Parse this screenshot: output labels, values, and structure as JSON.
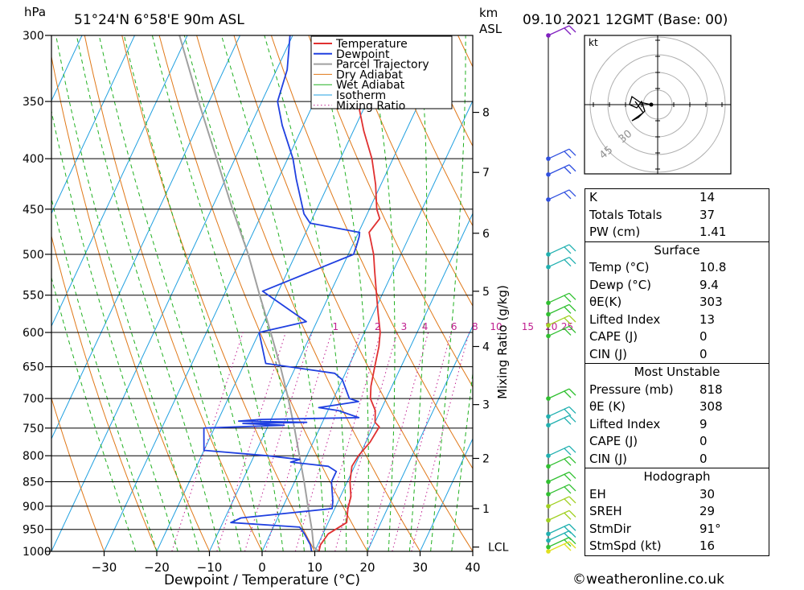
{
  "header": {
    "location": "51°24'N  6°58'E  90m  ASL",
    "date": "09.10.2021  12GMT  (Base: 00)",
    "hpa_unit": "hPa",
    "km_unit": "km",
    "asl_unit": "ASL"
  },
  "chart_data": {
    "type": "line",
    "chart_kind": "skew-T log-P",
    "xlabel": "Dewpoint / Temperature (°C)",
    "y2label": "Mixing Ratio (g/kg)",
    "xlim": [
      -40,
      40
    ],
    "ylim": [
      1000,
      300
    ],
    "y_scale": "log",
    "pressure_ticks": [
      300,
      350,
      400,
      450,
      500,
      550,
      600,
      650,
      700,
      750,
      800,
      850,
      900,
      950,
      1000
    ],
    "temp_ticks": [
      -30,
      -20,
      -10,
      0,
      10,
      20,
      30,
      40
    ],
    "km_ticks": [
      {
        "label": "8",
        "p": 359
      },
      {
        "label": "7",
        "p": 413
      },
      {
        "label": "6",
        "p": 476
      },
      {
        "label": "5",
        "p": 545
      },
      {
        "label": "4",
        "p": 620
      },
      {
        "label": "3",
        "p": 710
      },
      {
        "label": "2",
        "p": 805
      },
      {
        "label": "1",
        "p": 905
      },
      {
        "label": "LCL",
        "p": 990
      }
    ],
    "mixing_ratio_labels": [
      "1",
      "2",
      "3",
      "4",
      "6",
      "8",
      "10",
      "15",
      "20",
      "25"
    ],
    "mixing_ratio_label_x": [
      -5.5,
      2.5,
      7.5,
      11.5,
      17,
      21,
      25,
      31,
      35.5,
      38.5
    ],
    "legend": [
      "Temperature",
      "Dewpoint",
      "Parcel Trajectory",
      "Dry Adiabat",
      "Wet Adiabat",
      "Isotherm",
      "Mixing Ratio"
    ],
    "legend_position": "top-center",
    "colors": {
      "temperature": "#e03030",
      "dewpoint": "#2040e0",
      "parcel": "#a0a0a0",
      "dry_adiabat": "#e07818",
      "wet_adiabat": "#20b020",
      "isotherm": "#20a0e0",
      "mixing_ratio": "#c02090"
    },
    "series": [
      {
        "name": "Temperature",
        "points": [
          [
            1000,
            10.8
          ],
          [
            985,
            10.5
          ],
          [
            960,
            11.0
          ],
          [
            935,
            13.5
          ],
          [
            905,
            12.5
          ],
          [
            880,
            12.0
          ],
          [
            850,
            10.5
          ],
          [
            820,
            9.5
          ],
          [
            800,
            9.8
          ],
          [
            775,
            10.8
          ],
          [
            748,
            11.2
          ],
          [
            740,
            10.0
          ],
          [
            720,
            9.0
          ],
          [
            700,
            7.0
          ],
          [
            680,
            6.0
          ],
          [
            650,
            5.0
          ],
          [
            620,
            4.0
          ],
          [
            600,
            3.0
          ],
          [
            575,
            1.0
          ],
          [
            550,
            -1.0
          ],
          [
            520,
            -3.5
          ],
          [
            500,
            -5.2
          ],
          [
            475,
            -8.0
          ],
          [
            460,
            -7.2
          ],
          [
            450,
            -8.6
          ],
          [
            425,
            -11.0
          ],
          [
            400,
            -14.0
          ],
          [
            375,
            -18.0
          ],
          [
            355,
            -21.0
          ],
          [
            335,
            -24.5
          ],
          [
            300,
            -29.5
          ]
        ]
      },
      {
        "name": "Dewpoint",
        "points": [
          [
            1000,
            9.4
          ],
          [
            985,
            8.6
          ],
          [
            960,
            6.5
          ],
          [
            945,
            5.0
          ],
          [
            935,
            -8.5
          ],
          [
            925,
            -7.0
          ],
          [
            905,
            9.5
          ],
          [
            890,
            9.0
          ],
          [
            850,
            7.0
          ],
          [
            830,
            7.0
          ],
          [
            820,
            5.0
          ],
          [
            812,
            -2.5
          ],
          [
            807,
            -1.0
          ],
          [
            800,
            -7.5
          ],
          [
            790,
            -20.0
          ],
          [
            760,
            -21.5
          ],
          [
            750,
            -22.0
          ],
          [
            745,
            -7.0
          ],
          [
            742,
            -15.0
          ],
          [
            740,
            -3.0
          ],
          [
            738,
            -16.0
          ],
          [
            735,
            -12.0
          ],
          [
            732,
            6.5
          ],
          [
            720,
            2.0
          ],
          [
            715,
            -2.0
          ],
          [
            705,
            5.0
          ],
          [
            700,
            3.0
          ],
          [
            670,
            0.0
          ],
          [
            660,
            -2.0
          ],
          [
            645,
            -16.0
          ],
          [
            600,
            -20.0
          ],
          [
            585,
            -12.0
          ],
          [
            545,
            -23.0
          ],
          [
            500,
            -9.0
          ],
          [
            490,
            -9.2
          ],
          [
            480,
            -9.5
          ],
          [
            475,
            -9.8
          ],
          [
            465,
            -20.0
          ],
          [
            455,
            -22.0
          ],
          [
            420,
            -26.5
          ],
          [
            400,
            -29.0
          ],
          [
            370,
            -34.0
          ],
          [
            350,
            -37.0
          ],
          [
            325,
            -38.0
          ],
          [
            300,
            -40.5
          ]
        ]
      },
      {
        "name": "Parcel Trajectory",
        "points": [
          [
            1000,
            10.8
          ],
          [
            990,
            9.4
          ],
          [
            950,
            7.5
          ],
          [
            900,
            4.7
          ],
          [
            850,
            1.8
          ],
          [
            800,
            -1.4
          ],
          [
            750,
            -4.8
          ],
          [
            700,
            -8.6
          ],
          [
            650,
            -12.9
          ],
          [
            600,
            -17.8
          ],
          [
            550,
            -23.2
          ],
          [
            500,
            -29.0
          ],
          [
            450,
            -36.0
          ],
          [
            400,
            -43.5
          ],
          [
            350,
            -52.0
          ],
          [
            300,
            -61.5
          ]
        ]
      }
    ],
    "wind_barbs": [
      {
        "p": 300,
        "color": "#8020c0"
      },
      {
        "p": 400,
        "color": "#3050e0"
      },
      {
        "p": 415,
        "color": "#3050e0"
      },
      {
        "p": 440,
        "color": "#3050e0"
      },
      {
        "p": 500,
        "color": "#20b0b0"
      },
      {
        "p": 515,
        "color": "#20b0b0"
      },
      {
        "p": 560,
        "color": "#30c030"
      },
      {
        "p": 575,
        "color": "#30c030"
      },
      {
        "p": 590,
        "color": "#a0d020"
      },
      {
        "p": 605,
        "color": "#30c030"
      },
      {
        "p": 700,
        "color": "#30c030"
      },
      {
        "p": 730,
        "color": "#20b0b0"
      },
      {
        "p": 745,
        "color": "#20b0b0"
      },
      {
        "p": 800,
        "color": "#20b0b0"
      },
      {
        "p": 820,
        "color": "#30c030"
      },
      {
        "p": 850,
        "color": "#30c030"
      },
      {
        "p": 875,
        "color": "#30c030"
      },
      {
        "p": 900,
        "color": "#a0d020"
      },
      {
        "p": 930,
        "color": "#a0d020"
      },
      {
        "p": 960,
        "color": "#20b0b0"
      },
      {
        "p": 975,
        "color": "#20b0b0"
      },
      {
        "p": 990,
        "color": "#30c030"
      },
      {
        "p": 1000,
        "color": "#e0e020"
      }
    ],
    "hodograph": {
      "unit_label": "kt",
      "ring_labels": [
        "30",
        "45"
      ]
    }
  },
  "indices": {
    "top": [
      {
        "label": "K",
        "value": "14"
      },
      {
        "label": "Totals Totals",
        "value": "37"
      },
      {
        "label": "PW (cm)",
        "value": "1.41"
      }
    ],
    "surface": {
      "title": "Surface",
      "rows": [
        {
          "label": "Temp (°C)",
          "value": "10.8"
        },
        {
          "label": "Dewp (°C)",
          "value": "9.4"
        },
        {
          "label": "θE(K)",
          "value": "303"
        },
        {
          "label": "Lifted Index",
          "value": "13"
        },
        {
          "label": "CAPE (J)",
          "value": "0"
        },
        {
          "label": "CIN (J)",
          "value": "0"
        }
      ]
    },
    "most_unstable": {
      "title": "Most Unstable",
      "rows": [
        {
          "label": "Pressure (mb)",
          "value": "818"
        },
        {
          "label": "θE (K)",
          "value": "308"
        },
        {
          "label": "Lifted Index",
          "value": "9"
        },
        {
          "label": "CAPE (J)",
          "value": "0"
        },
        {
          "label": "CIN (J)",
          "value": "0"
        }
      ]
    },
    "hodograph": {
      "title": "Hodograph",
      "rows": [
        {
          "label": "EH",
          "value": "30"
        },
        {
          "label": "SREH",
          "value": "29"
        },
        {
          "label": "StmDir",
          "value": "91°"
        },
        {
          "label": "StmSpd (kt)",
          "value": "16"
        }
      ]
    }
  },
  "footer": {
    "credit": "©weatheronline.co.uk"
  }
}
